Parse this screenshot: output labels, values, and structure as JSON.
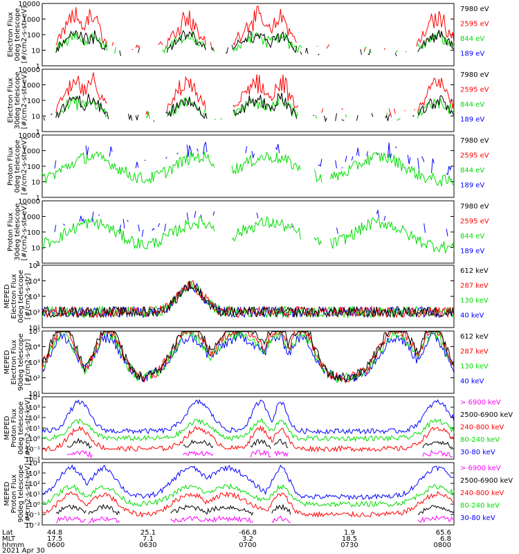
{
  "date_label": "2021 Apr 30",
  "axis_rows": {
    "labels": [
      "Lat",
      "MLT",
      "hhmm"
    ],
    "columns": [
      [
        "44.8",
        "17.5",
        "0600"
      ],
      [
        "25.1",
        "7.1",
        "0630"
      ],
      [
        "-66.8",
        "3.2",
        "0700"
      ],
      [
        "1.9",
        "18.5",
        "0730"
      ],
      [
        "65.6",
        "6.8",
        "0800"
      ]
    ]
  },
  "colors": {
    "black": "#000000",
    "red": "#ff0000",
    "green": "#00dd00",
    "blue": "#0000ff",
    "magenta": "#ff00ff"
  },
  "chart_data": [
    {
      "type": "line",
      "ylabel": [
        "Electron Flux",
        "0deg telescope",
        "[#/cm2-s-str-eV]"
      ],
      "ylog": true,
      "ylim": [
        1,
        10000
      ],
      "yticks": [
        "1",
        "10",
        "100",
        "1000",
        "10000"
      ],
      "legend": [
        {
          "label": "7980 eV",
          "color": "#000000"
        },
        {
          "label": "2595 eV",
          "color": "#ff0000"
        },
        {
          "label": "844 eV",
          "color": "#00dd00"
        },
        {
          "label": "189 eV",
          "color": "#0000ff"
        }
      ]
    },
    {
      "type": "line",
      "ylabel": [
        "Electron Flux",
        "30deg telescope",
        "[#/cm2-s-str-eV]"
      ],
      "ylog": true,
      "ylim": [
        1,
        10000
      ],
      "yticks": [
        "1",
        "10",
        "100",
        "1000",
        "10000"
      ],
      "legend": [
        {
          "label": "7980 eV",
          "color": "#000000"
        },
        {
          "label": "2595 eV",
          "color": "#ff0000"
        },
        {
          "label": "844 eV",
          "color": "#00dd00"
        },
        {
          "label": "189 eV",
          "color": "#0000ff"
        }
      ]
    },
    {
      "type": "line",
      "ylabel": [
        "Proton Flux",
        "0deg telescope",
        "[#/cm2-s-str-eV]"
      ],
      "ylog": true,
      "ylim": [
        1,
        10000
      ],
      "yticks": [
        "1",
        "10",
        "100",
        "1000",
        "10000"
      ],
      "legend": [
        {
          "label": "7980 eV",
          "color": "#000000"
        },
        {
          "label": "2595 eV",
          "color": "#ff0000"
        },
        {
          "label": "844 eV",
          "color": "#00dd00"
        },
        {
          "label": "189 eV",
          "color": "#0000ff"
        }
      ]
    },
    {
      "type": "line",
      "ylabel": [
        "Proton Flux",
        "30deg telescope",
        "[#/cm2-s-str-eV]"
      ],
      "ylog": true,
      "ylim": [
        1,
        10000
      ],
      "yticks": [
        "1",
        "10",
        "100",
        "1000",
        "10000"
      ],
      "legend": [
        {
          "label": "7980 eV",
          "color": "#000000"
        },
        {
          "label": "2595 eV",
          "color": "#ff0000"
        },
        {
          "label": "844 eV",
          "color": "#00dd00"
        },
        {
          "label": "189 eV",
          "color": "#0000ff"
        }
      ]
    },
    {
      "type": "line",
      "ylabel": [
        "MEPED",
        "Electron Flux",
        "0deg telescope",
        "[#/cm2-s-str]"
      ],
      "ylog": true,
      "ylim": [
        10,
        100000
      ],
      "yticks": [
        "10¹",
        "10²",
        "10³",
        "10⁴",
        "10⁵"
      ],
      "legend": [
        {
          "label": "612 keV",
          "color": "#000000"
        },
        {
          "label": "287 keV",
          "color": "#ff0000"
        },
        {
          "label": "130 keV",
          "color": "#00dd00"
        },
        {
          "label": "40 keV",
          "color": "#0000ff"
        }
      ]
    },
    {
      "type": "line",
      "ylabel": [
        "MEPED",
        "Electron Flux",
        "90deg telescope",
        "[#/cm2-s-str]"
      ],
      "ylog": true,
      "ylim": [
        10,
        100000
      ],
      "yticks": [
        "10¹",
        "10²",
        "10³",
        "10⁴",
        "10⁵"
      ],
      "legend": [
        {
          "label": "612 keV",
          "color": "#000000"
        },
        {
          "label": "287 keV",
          "color": "#ff0000"
        },
        {
          "label": "130 keV",
          "color": "#00dd00"
        },
        {
          "label": "40 keV",
          "color": "#0000ff"
        }
      ]
    },
    {
      "type": "line",
      "ylabel": [
        "MEPED",
        "Proton Flux",
        "0deg telescope",
        "[#/cm2-s-str-keV]"
      ],
      "ylog": true,
      "ylim": [
        0.01,
        10000
      ],
      "yticks": [
        "10⁻²",
        "10⁻¹",
        "10⁰",
        "10¹",
        "10²",
        "10³",
        "10⁴"
      ],
      "legend": [
        {
          "label": "> 6900 keV",
          "color": "#ff00ff"
        },
        {
          "label": "2500-6900 keV",
          "color": "#000000"
        },
        {
          "label": "240-800 keV",
          "color": "#ff0000"
        },
        {
          "label": "80-240 keV",
          "color": "#00dd00"
        },
        {
          "label": "30-80 keV",
          "color": "#0000ff"
        }
      ]
    },
    {
      "type": "line",
      "ylabel": [
        "MEPED",
        "Proton Flux",
        "90deg telescope",
        "[#/cm2-s-str-keV]"
      ],
      "ylog": true,
      "ylim": [
        0.01,
        10000
      ],
      "yticks": [
        "10⁻²",
        "10⁻¹",
        "10⁰",
        "10¹",
        "10²",
        "10³",
        "10⁴"
      ],
      "legend": [
        {
          "label": "> 6900 keV",
          "color": "#ff00ff"
        },
        {
          "label": "2500-6900 keV",
          "color": "#000000"
        },
        {
          "label": "240-800 keV",
          "color": "#ff0000"
        },
        {
          "label": "80-240 keV",
          "color": "#00dd00"
        },
        {
          "label": "30-80 keV",
          "color": "#0000ff"
        }
      ]
    }
  ]
}
